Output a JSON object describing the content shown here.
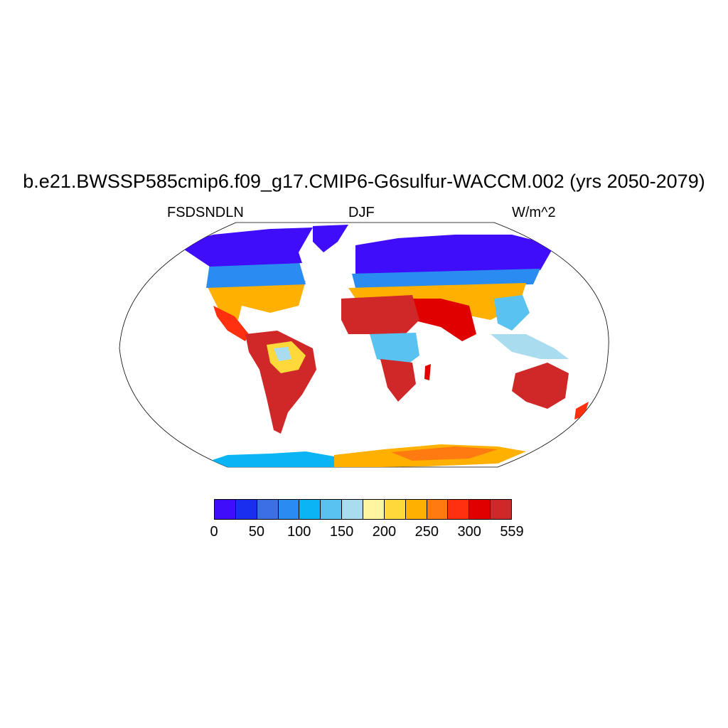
{
  "title": "b.e21.BWSSP585cmip6.f09_g17.CMIP6-G6sulfur-WACCM.002 (yrs 2050-2079)",
  "left_label": "FSDSNDLN",
  "center_label": "DJF",
  "right_label": "W/m^2",
  "colorbar": {
    "colors": [
      "#3f0dfa",
      "#1a2ef0",
      "#3c6ee6",
      "#2a8cf0",
      "#0ab4f5",
      "#5ac2f0",
      "#aadcf0",
      "#fff5a0",
      "#ffd83a",
      "#ffb000",
      "#ff7a10",
      "#ff3010",
      "#e00000",
      "#d02828"
    ],
    "labels": [
      "0",
      "50",
      "100",
      "150",
      "200",
      "250",
      "300",
      "559"
    ]
  }
}
